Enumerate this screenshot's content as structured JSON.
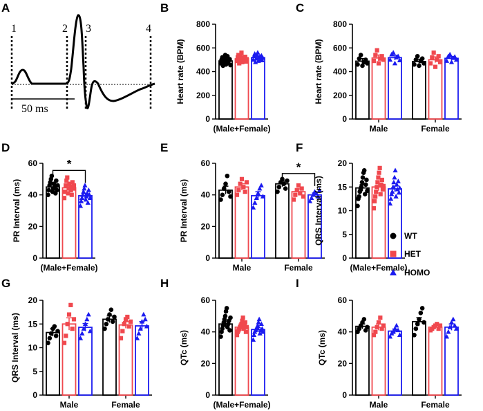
{
  "colors": {
    "WT": "#000000",
    "HET": "#f0484e",
    "HOMO": "#1b1bf0"
  },
  "legend": [
    {
      "name": "WT",
      "marker": "circle"
    },
    {
      "name": "HET",
      "marker": "square"
    },
    {
      "name": "HOMO",
      "marker": "triangle"
    }
  ],
  "ecg_panel": {
    "label": "A",
    "markers": [
      "1",
      "2",
      "3",
      "4"
    ],
    "scale_label": "50 ms"
  },
  "chart_data": [
    {
      "id": "B",
      "type": "bar",
      "ylabel": "Heart rate (BPM)",
      "ylim": [
        0,
        800
      ],
      "yticks": [
        0,
        200,
        400,
        600,
        800
      ],
      "groups": [
        {
          "label": "(Male+Female)",
          "series": [
            {
              "name": "WT",
              "mean": 490,
              "sem": 18,
              "points": [
                470,
                500,
                520,
                450,
                480,
                510,
                540,
                460,
                490,
                530,
                475,
                495,
                505,
                455
              ]
            },
            {
              "name": "HET",
              "mean": 508,
              "sem": 16,
              "points": [
                490,
                520,
                540,
                470,
                500,
                530,
                560,
                480,
                510,
                515,
                495,
                525,
                485,
                505
              ]
            },
            {
              "name": "HOMO",
              "mean": 518,
              "sem": 14,
              "points": [
                500,
                530,
                550,
                480,
                510,
                540,
                560,
                490,
                520,
                525,
                505,
                535,
                495,
                515
              ]
            }
          ]
        }
      ]
    },
    {
      "id": "C",
      "type": "bar",
      "ylabel": "Heart rate (BPM)",
      "ylim": [
        0,
        800
      ],
      "yticks": [
        0,
        200,
        400,
        600,
        800
      ],
      "groups": [
        {
          "label": "Male",
          "series": [
            {
              "name": "WT",
              "mean": 488,
              "sem": 22,
              "points": [
                460,
                510,
                540,
                450,
                480,
                500,
                470
              ]
            },
            {
              "name": "HET",
              "mean": 515,
              "sem": 25,
              "points": [
                490,
                540,
                580,
                470,
                510,
                530,
                500
              ]
            },
            {
              "name": "HOMO",
              "mean": 518,
              "sem": 20,
              "points": [
                500,
                545,
                560,
                470,
                520,
                530,
                495
              ]
            }
          ]
        },
        {
          "label": "Female",
          "series": [
            {
              "name": "WT",
              "mean": 485,
              "sem": 20,
              "points": [
                460,
                500,
                530,
                450,
                490,
                510,
                470
              ]
            },
            {
              "name": "HET",
              "mean": 500,
              "sem": 24,
              "points": [
                470,
                520,
                560,
                440,
                500,
                530,
                480
              ]
            },
            {
              "name": "HOMO",
              "mean": 512,
              "sem": 15,
              "points": [
                490,
                530,
                545,
                480,
                515,
                525,
                500
              ]
            }
          ]
        }
      ]
    },
    {
      "id": "D",
      "type": "bar",
      "ylabel": "PR Interval (ms)",
      "ylim": [
        0,
        60
      ],
      "yticks": [
        0,
        20,
        40,
        60
      ],
      "sig": "*",
      "groups": [
        {
          "label": "(Male+Female)",
          "series": [
            {
              "name": "WT",
              "mean": 45,
              "sem": 1.5,
              "points": [
                40,
                43,
                46,
                48,
                50,
                52,
                42,
                44,
                47,
                45,
                41,
                49,
                43,
                46
              ]
            },
            {
              "name": "HET",
              "mean": 44.5,
              "sem": 1.6,
              "points": [
                38,
                42,
                46,
                49,
                51,
                41,
                44,
                47,
                45,
                43,
                40,
                48,
                44,
                46
              ]
            },
            {
              "name": "HOMO",
              "mean": 39.5,
              "sem": 1.4,
              "points": [
                33,
                36,
                38,
                40,
                42,
                44,
                46,
                37,
                39,
                41,
                35,
                43,
                40,
                38
              ]
            }
          ]
        }
      ]
    },
    {
      "id": "E",
      "type": "bar",
      "ylabel": "PR Interval (ms)",
      "ylim": [
        0,
        60
      ],
      "yticks": [
        0,
        20,
        40,
        60
      ],
      "sig": "*",
      "groups": [
        {
          "label": "Male",
          "series": [
            {
              "name": "WT",
              "mean": 43,
              "sem": 2.5,
              "points": [
                37,
                40,
                44,
                47,
                52,
                42,
                39
              ]
            },
            {
              "name": "HET",
              "mean": 45,
              "sem": 2.0,
              "points": [
                40,
                43,
                47,
                50,
                45,
                42,
                48
              ]
            },
            {
              "name": "HOMO",
              "mean": 39.5,
              "sem": 2.5,
              "points": [
                32,
                35,
                38,
                41,
                44,
                46,
                39
              ]
            }
          ]
        },
        {
          "label": "Female",
          "series": [
            {
              "name": "WT",
              "mean": 47,
              "sem": 1.8,
              "points": [
                42,
                45,
                48,
                50,
                47,
                44,
                49
              ]
            },
            {
              "name": "HET",
              "mean": 42,
              "sem": 1.8,
              "points": [
                37,
                40,
                43,
                46,
                41,
                44,
                39
              ]
            },
            {
              "name": "HOMO",
              "mean": 40,
              "sem": 1.2,
              "points": [
                36,
                38,
                40,
                42,
                41,
                39,
                43
              ]
            }
          ]
        }
      ]
    },
    {
      "id": "F",
      "type": "bar",
      "ylabel": "QRS Interval (ms)",
      "ylim": [
        0,
        20
      ],
      "yticks": [
        0,
        5,
        10,
        15,
        20
      ],
      "groups": [
        {
          "label": "(Male+Female)",
          "series": [
            {
              "name": "WT",
              "mean": 14.8,
              "sem": 0.7,
              "points": [
                11,
                12.5,
                13,
                14,
                14.5,
                15,
                16,
                17,
                18,
                18.5,
                13.5,
                15.5,
                16.5,
                14.2
              ]
            },
            {
              "name": "HET",
              "mean": 15,
              "sem": 0.8,
              "points": [
                10.5,
                12,
                13,
                14,
                15,
                16,
                17,
                18,
                19,
                13.5,
                15.5,
                16.5,
                14.5,
                15.2
              ]
            },
            {
              "name": "HOMO",
              "mean": 14.6,
              "sem": 0.6,
              "points": [
                11.5,
                12.5,
                13.5,
                14,
                15,
                16,
                17,
                18.5,
                13,
                15.5,
                14.5,
                16.2,
                13.8,
                14.8
              ]
            }
          ]
        }
      ]
    },
    {
      "id": "G",
      "type": "bar",
      "ylabel": "QRS Interval (ms)",
      "ylim": [
        0,
        20
      ],
      "yticks": [
        0,
        5,
        10,
        15,
        20
      ],
      "groups": [
        {
          "label": "Male",
          "series": [
            {
              "name": "WT",
              "mean": 13.2,
              "sem": 0.8,
              "points": [
                11,
                12,
                13,
                14,
                14.5,
                12.5,
                13.5
              ]
            },
            {
              "name": "HET",
              "mean": 15,
              "sem": 1.3,
              "points": [
                11,
                12.5,
                15,
                17,
                19,
                14,
                16
              ]
            },
            {
              "name": "HOMO",
              "mean": 14.3,
              "sem": 0.8,
              "points": [
                12,
                13,
                14,
                15,
                16,
                17,
                13.5
              ]
            }
          ]
        },
        {
          "label": "Female",
          "series": [
            {
              "name": "WT",
              "mean": 16,
              "sem": 0.7,
              "points": [
                14,
                15,
                16,
                17,
                18,
                15.5,
                16.5
              ]
            },
            {
              "name": "HET",
              "mean": 14.8,
              "sem": 0.7,
              "points": [
                12,
                13.5,
                15,
                16,
                16.5,
                14.5,
                15.5
              ]
            },
            {
              "name": "HOMO",
              "mean": 14.6,
              "sem": 0.9,
              "points": [
                12,
                13,
                14,
                15.5,
                17,
                16,
                14.5
              ]
            }
          ]
        }
      ]
    },
    {
      "id": "H",
      "type": "bar",
      "ylabel": "QTc (ms)",
      "ylim": [
        0,
        60
      ],
      "yticks": [
        0,
        20,
        40,
        60
      ],
      "groups": [
        {
          "label": "(Male+Female)",
          "series": [
            {
              "name": "WT",
              "mean": 45,
              "sem": 1.8,
              "points": [
                37,
                40,
                42,
                44,
                46,
                48,
                50,
                53,
                55,
                43,
                45,
                47,
                41,
                49
              ]
            },
            {
              "name": "HET",
              "mean": 43,
              "sem": 1.2,
              "points": [
                38,
                40,
                41,
                42,
                43,
                44,
                45,
                47,
                49,
                42,
                44,
                46,
                40,
                43
              ]
            },
            {
              "name": "HOMO",
              "mean": 41.5,
              "sem": 1.2,
              "points": [
                35,
                38,
                40,
                41,
                42,
                43,
                44,
                46,
                48,
                39,
                41,
                45,
                42,
                40
              ]
            }
          ]
        }
      ]
    },
    {
      "id": "I",
      "type": "bar",
      "ylabel": "QTc (ms)",
      "ylim": [
        0,
        60
      ],
      "yticks": [
        0,
        20,
        40,
        60
      ],
      "groups": [
        {
          "label": "Male",
          "series": [
            {
              "name": "WT",
              "mean": 43.5,
              "sem": 1.5,
              "points": [
                40,
                42,
                44,
                46,
                48,
                41,
                43
              ]
            },
            {
              "name": "HET",
              "mean": 43,
              "sem": 2.0,
              "points": [
                38,
                40,
                43,
                46,
                49,
                42,
                44
              ]
            },
            {
              "name": "HOMO",
              "mean": 40.5,
              "sem": 1.3,
              "points": [
                37,
                39,
                40,
                42,
                44,
                41,
                38
              ]
            }
          ]
        },
        {
          "label": "Female",
          "series": [
            {
              "name": "WT",
              "mean": 46.5,
              "sem": 2.5,
              "points": [
                38,
                42,
                45,
                48,
                52,
                55,
                46
              ]
            },
            {
              "name": "HET",
              "mean": 43,
              "sem": 1.0,
              "points": [
                41,
                42,
                43,
                44,
                45,
                42,
                44
              ]
            },
            {
              "name": "HOMO",
              "mean": 43,
              "sem": 2.0,
              "points": [
                37,
                40,
                43,
                46,
                48,
                44,
                42
              ]
            }
          ]
        }
      ]
    }
  ]
}
